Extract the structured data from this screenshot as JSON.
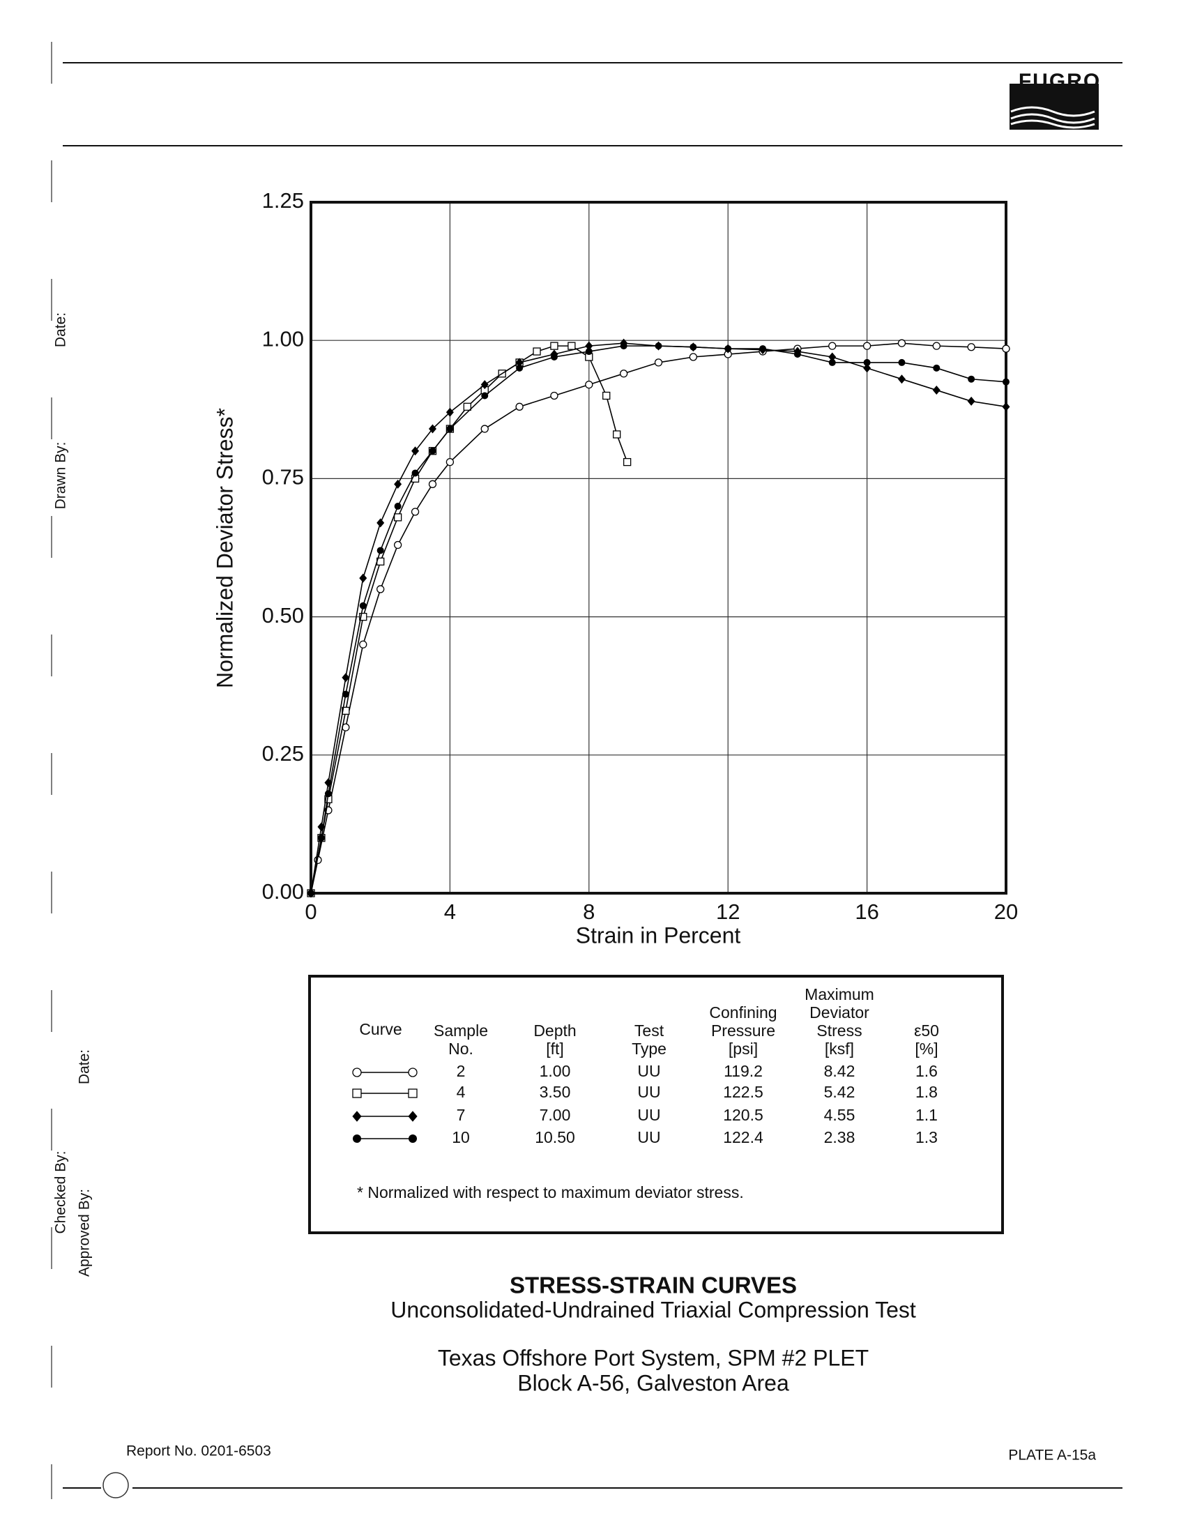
{
  "header": {
    "logo": "FUGRO"
  },
  "margin_labels": [
    "Drawn By:",
    "Date:",
    "Checked By:",
    "Date:",
    "Approved By:"
  ],
  "chart_data": {
    "type": "line",
    "x_label": "Strain in Percent",
    "y_label": "Normalized Deviator Stress*",
    "xlim": [
      0,
      20
    ],
    "ylim": [
      0,
      1.25
    ],
    "xticks": [
      0,
      4,
      8,
      12,
      16,
      20
    ],
    "yticks": [
      {
        "value": 0,
        "label": "0.00"
      },
      0.25,
      {
        "value": 0.5,
        "label": "0.50"
      },
      0.75,
      {
        "value": 1,
        "label": "1.00"
      },
      1.25
    ],
    "grid": true,
    "series": [
      {
        "name": "2",
        "color": "#000000",
        "marker": "open-circle",
        "x": [
          0,
          0.2,
          0.5,
          1,
          1.5,
          2,
          2.5,
          3,
          3.5,
          4,
          5,
          6,
          7,
          8,
          9,
          10,
          11,
          12,
          13,
          14,
          15,
          16,
          17,
          18,
          19,
          20
        ],
        "values": [
          0,
          0.06,
          0.15,
          0.3,
          0.45,
          0.55,
          0.63,
          0.69,
          0.74,
          0.78,
          0.84,
          0.88,
          0.9,
          0.92,
          0.94,
          0.96,
          0.97,
          0.975,
          0.98,
          0.985,
          0.99,
          0.99,
          0.995,
          0.99,
          0.988,
          0.985
        ]
      },
      {
        "name": "4",
        "color": "#000000",
        "marker": "open-square",
        "x": [
          0,
          0.3,
          0.5,
          1,
          1.5,
          2,
          2.5,
          3,
          3.5,
          4,
          4.5,
          5,
          5.5,
          6,
          6.5,
          7,
          7.5,
          8,
          8.5,
          8.8,
          9.1
        ],
        "values": [
          0,
          0.1,
          0.17,
          0.33,
          0.5,
          0.6,
          0.68,
          0.75,
          0.8,
          0.84,
          0.88,
          0.91,
          0.94,
          0.96,
          0.98,
          0.99,
          0.99,
          0.97,
          0.9,
          0.83,
          0.78
        ]
      },
      {
        "name": "7",
        "color": "#000000",
        "marker": "diamond",
        "x": [
          0,
          0.3,
          0.5,
          1,
          1.5,
          2,
          2.5,
          3,
          3.5,
          4,
          5,
          6,
          7,
          8,
          9,
          10,
          11,
          12,
          13,
          14,
          15,
          16,
          17,
          18,
          19,
          20
        ],
        "values": [
          0,
          0.12,
          0.2,
          0.39,
          0.57,
          0.67,
          0.74,
          0.8,
          0.84,
          0.87,
          0.92,
          0.96,
          0.975,
          0.99,
          0.995,
          0.99,
          0.988,
          0.985,
          0.983,
          0.98,
          0.97,
          0.95,
          0.93,
          0.91,
          0.89,
          0.88
        ]
      },
      {
        "name": "10",
        "color": "#000000",
        "marker": "circle",
        "x": [
          0,
          0.3,
          0.5,
          1,
          1.5,
          2,
          2.5,
          3,
          3.5,
          4,
          5,
          6,
          7,
          8,
          9,
          10,
          11,
          12,
          13,
          14,
          15,
          16,
          17,
          18,
          19,
          20
        ],
        "values": [
          0,
          0.1,
          0.18,
          0.36,
          0.52,
          0.62,
          0.7,
          0.76,
          0.8,
          0.84,
          0.9,
          0.95,
          0.97,
          0.98,
          0.99,
          0.99,
          0.988,
          0.985,
          0.985,
          0.975,
          0.96,
          0.96,
          0.96,
          0.95,
          0.93,
          0.925
        ]
      }
    ]
  },
  "legend_table": {
    "headers": [
      [
        "Curve"
      ],
      [
        "Sample",
        "No."
      ],
      [
        "Depth",
        "[ft]"
      ],
      [
        "Test",
        "Type"
      ],
      [
        "Confining",
        "Pressure",
        "[psi]"
      ],
      [
        "Maximum",
        "Deviator",
        "Stress",
        "[ksf]"
      ],
      [
        "ε50",
        "[%]"
      ]
    ],
    "rows": [
      [
        "2",
        "1.00",
        "UU",
        "119.2",
        "8.42",
        "1.6"
      ],
      [
        "4",
        "3.50",
        "UU",
        "122.5",
        "5.42",
        "1.8"
      ],
      [
        "7",
        "7.00",
        "UU",
        "120.5",
        "4.55",
        "1.1"
      ],
      [
        "10",
        "10.50",
        "UU",
        "122.4",
        "2.38",
        "1.3"
      ]
    ],
    "footnote": "* Normalized with respect to maximum deviator stress."
  },
  "titles": {
    "title": "STRESS-STRAIN CURVES",
    "subtitle": "Unconsolidated-Undrained Triaxial Compression Test",
    "project": [
      "Texas Offshore Port System, SPM #2 PLET",
      "Block A-56, Galveston Area"
    ]
  },
  "footer": {
    "report": "Report No. 0201-6503",
    "plate": "PLATE A-15a"
  }
}
